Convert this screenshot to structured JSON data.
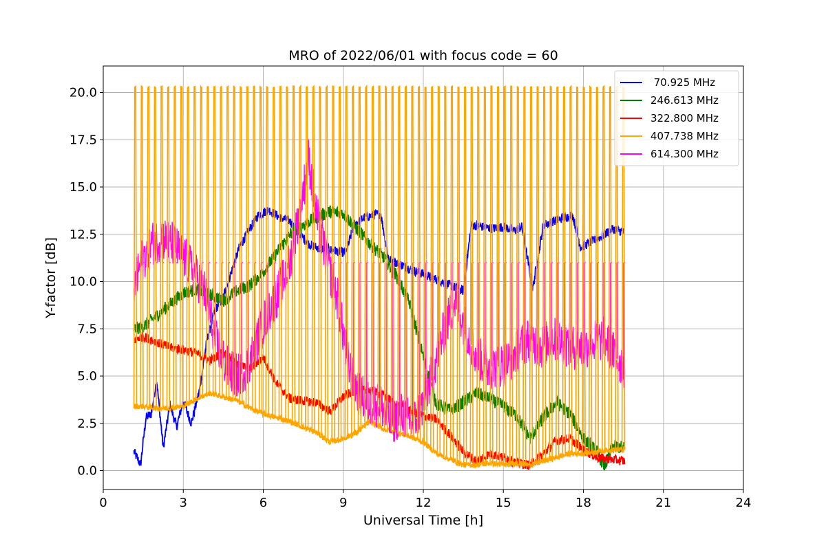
{
  "chart_data": {
    "type": "line",
    "title": "MRO of 2022/06/01 with focus code = 60",
    "xlabel": "Universal Time [h]",
    "ylabel": "Y-factor [dB]",
    "xlim": [
      0,
      24
    ],
    "ylim": [
      -1.0,
      21.4
    ],
    "xticks": [
      0,
      3,
      6,
      9,
      12,
      15,
      18,
      21,
      24
    ],
    "xtick_labels": [
      "0",
      "3",
      "6",
      "9",
      "12",
      "15",
      "18",
      "21",
      "24"
    ],
    "yticks": [
      0,
      2.5,
      5,
      7.5,
      10,
      12.5,
      15,
      17.5,
      20
    ],
    "ytick_labels": [
      "0.0",
      "2.5",
      "5.0",
      "7.5",
      "10.0",
      "12.5",
      "15.0",
      "17.5",
      "20.0"
    ],
    "grid": true,
    "legend_position": "top-right",
    "series": [
      {
        "name": " 70.925 MHz",
        "color": "#0000ff",
        "x": [
          1.15,
          1.4,
          1.6,
          1.8,
          2.0,
          2.25,
          2.5,
          2.75,
          3.0,
          3.3,
          3.6,
          3.9,
          4.2,
          4.5,
          4.8,
          5.1,
          5.5,
          5.8,
          6.2,
          6.6,
          7.0,
          7.3,
          7.7,
          8.0,
          8.4,
          8.8,
          9.1,
          9.4,
          9.8,
          10.1,
          10.4,
          10.7,
          11.0,
          11.3,
          11.6,
          12.0,
          12.5,
          13.0,
          13.5,
          13.8,
          14.2,
          14.6,
          15.0,
          15.4,
          15.7,
          16.1,
          16.5,
          16.9,
          17.3,
          17.6,
          17.9,
          18.3,
          18.7,
          19.1,
          19.55
        ],
        "y": [
          1.0,
          0.3,
          2.8,
          3.0,
          4.8,
          1.2,
          3.5,
          2.3,
          3.7,
          2.5,
          4.2,
          7.0,
          8.5,
          9.2,
          10.5,
          11.8,
          12.8,
          13.5,
          13.8,
          13.4,
          13.2,
          12.6,
          12.0,
          11.8,
          11.7,
          11.6,
          11.5,
          13.0,
          13.4,
          13.5,
          13.6,
          11.2,
          11.0,
          10.8,
          10.6,
          10.4,
          10.1,
          9.8,
          9.5,
          13.0,
          12.9,
          12.8,
          12.9,
          12.7,
          12.9,
          9.6,
          13.0,
          13.2,
          13.4,
          13.5,
          11.8,
          12.1,
          12.4,
          12.8,
          12.6
        ],
        "noise": 0.25
      },
      {
        "name": "246.613 MHz",
        "color": "#008000",
        "x": [
          1.15,
          1.5,
          2.0,
          2.5,
          3.0,
          3.5,
          4.0,
          4.5,
          5.0,
          5.5,
          6.0,
          6.5,
          7.0,
          7.5,
          8.0,
          8.5,
          9.0,
          9.5,
          10.0,
          10.5,
          11.0,
          11.5,
          12.0,
          12.5,
          13.0,
          13.5,
          14.0,
          14.5,
          15.0,
          15.5,
          16.0,
          16.5,
          17.0,
          17.5,
          18.0,
          18.5,
          18.8,
          19.1,
          19.55
        ],
        "y": [
          7.5,
          7.6,
          8.2,
          8.8,
          9.4,
          9.6,
          9.3,
          9.0,
          9.5,
          9.8,
          10.5,
          11.5,
          12.5,
          13.0,
          13.4,
          13.7,
          13.6,
          12.8,
          12.0,
          11.3,
          10.3,
          8.8,
          6.0,
          3.5,
          3.2,
          3.6,
          4.1,
          3.8,
          3.4,
          2.9,
          1.7,
          2.8,
          3.6,
          3.0,
          1.7,
          1.0,
          0.2,
          1.3,
          1.2
        ],
        "noise": 0.35
      },
      {
        "name": "322.800 MHz",
        "color": "#ff0000",
        "x": [
          1.15,
          1.5,
          2.0,
          2.5,
          3.0,
          3.5,
          4.0,
          4.5,
          5.0,
          5.5,
          6.0,
          6.5,
          7.0,
          7.5,
          8.0,
          8.5,
          9.0,
          9.5,
          10.0,
          10.5,
          11.0,
          11.5,
          12.0,
          12.5,
          13.0,
          13.5,
          14.0,
          14.5,
          15.0,
          15.5,
          16.0,
          16.5,
          17.0,
          17.5,
          18.0,
          18.5,
          19.0,
          19.55
        ],
        "y": [
          6.9,
          7.1,
          6.8,
          6.5,
          6.4,
          6.2,
          5.8,
          6.3,
          5.6,
          5.4,
          6.0,
          4.6,
          3.8,
          3.7,
          3.6,
          3.1,
          3.9,
          4.3,
          4.2,
          4.0,
          3.5,
          3.2,
          2.9,
          2.7,
          1.9,
          1.0,
          0.5,
          0.9,
          0.7,
          0.4,
          0.3,
          0.9,
          1.6,
          1.7,
          1.1,
          0.7,
          0.6,
          0.5
        ],
        "noise": 0.25
      },
      {
        "name": "407.738 MHz",
        "color": "#ffa500",
        "x": [
          1.15,
          1.5,
          2.0,
          2.5,
          3.0,
          3.5,
          4.0,
          4.5,
          5.0,
          5.5,
          6.0,
          6.5,
          7.0,
          7.5,
          8.0,
          8.5,
          9.0,
          9.5,
          10.0,
          10.5,
          11.0,
          11.5,
          12.0,
          12.5,
          13.0,
          13.5,
          14.0,
          14.5,
          15.0,
          15.5,
          16.0,
          16.5,
          17.0,
          17.5,
          18.0,
          18.5,
          19.0,
          19.55
        ],
        "y": [
          3.4,
          3.4,
          3.3,
          3.3,
          3.4,
          3.8,
          4.1,
          3.9,
          3.7,
          3.3,
          3.0,
          2.8,
          2.6,
          2.3,
          2.0,
          1.5,
          1.7,
          2.0,
          2.6,
          2.2,
          2.0,
          1.8,
          1.5,
          0.9,
          0.6,
          0.3,
          0.3,
          0.4,
          0.3,
          0.4,
          0.3,
          0.5,
          0.7,
          0.9,
          0.9,
          1.0,
          1.1,
          1.1
        ],
        "noise": 0.15,
        "spike_top": 20.3,
        "spike_count": 75
      },
      {
        "name": "614.300 MHz",
        "color": "#ff00ff",
        "x": [
          1.15,
          1.4,
          1.8,
          2.2,
          2.6,
          3.0,
          3.4,
          3.8,
          4.2,
          4.6,
          5.0,
          5.4,
          5.8,
          6.2,
          6.6,
          7.0,
          7.4,
          7.7,
          8.0,
          8.4,
          8.8,
          9.2,
          9.6,
          10.0,
          10.4,
          10.8,
          11.2,
          11.6,
          12.0,
          12.4,
          12.8,
          13.2,
          13.6,
          14.0,
          14.4,
          14.8,
          15.2,
          15.6,
          16.0,
          16.4,
          16.8,
          17.2,
          17.6,
          18.0,
          18.4,
          18.8,
          19.2,
          19.55
        ],
        "y": [
          9.5,
          11.0,
          12.0,
          12.3,
          12.0,
          11.3,
          10.5,
          9.5,
          7.0,
          5.5,
          5.0,
          5.5,
          7.0,
          8.5,
          9.5,
          11.0,
          14.0,
          16.5,
          13.5,
          11.0,
          9.0,
          5.5,
          4.0,
          3.5,
          3.5,
          2.5,
          3.0,
          2.5,
          3.5,
          5.5,
          7.5,
          9.0,
          7.5,
          6.0,
          5.5,
          5.5,
          5.8,
          6.5,
          7.0,
          6.5,
          7.0,
          6.8,
          6.5,
          6.5,
          6.8,
          7.0,
          6.0,
          5.5
        ],
        "noise": 1.2,
        "spike_top": 11.0
      }
    ]
  }
}
